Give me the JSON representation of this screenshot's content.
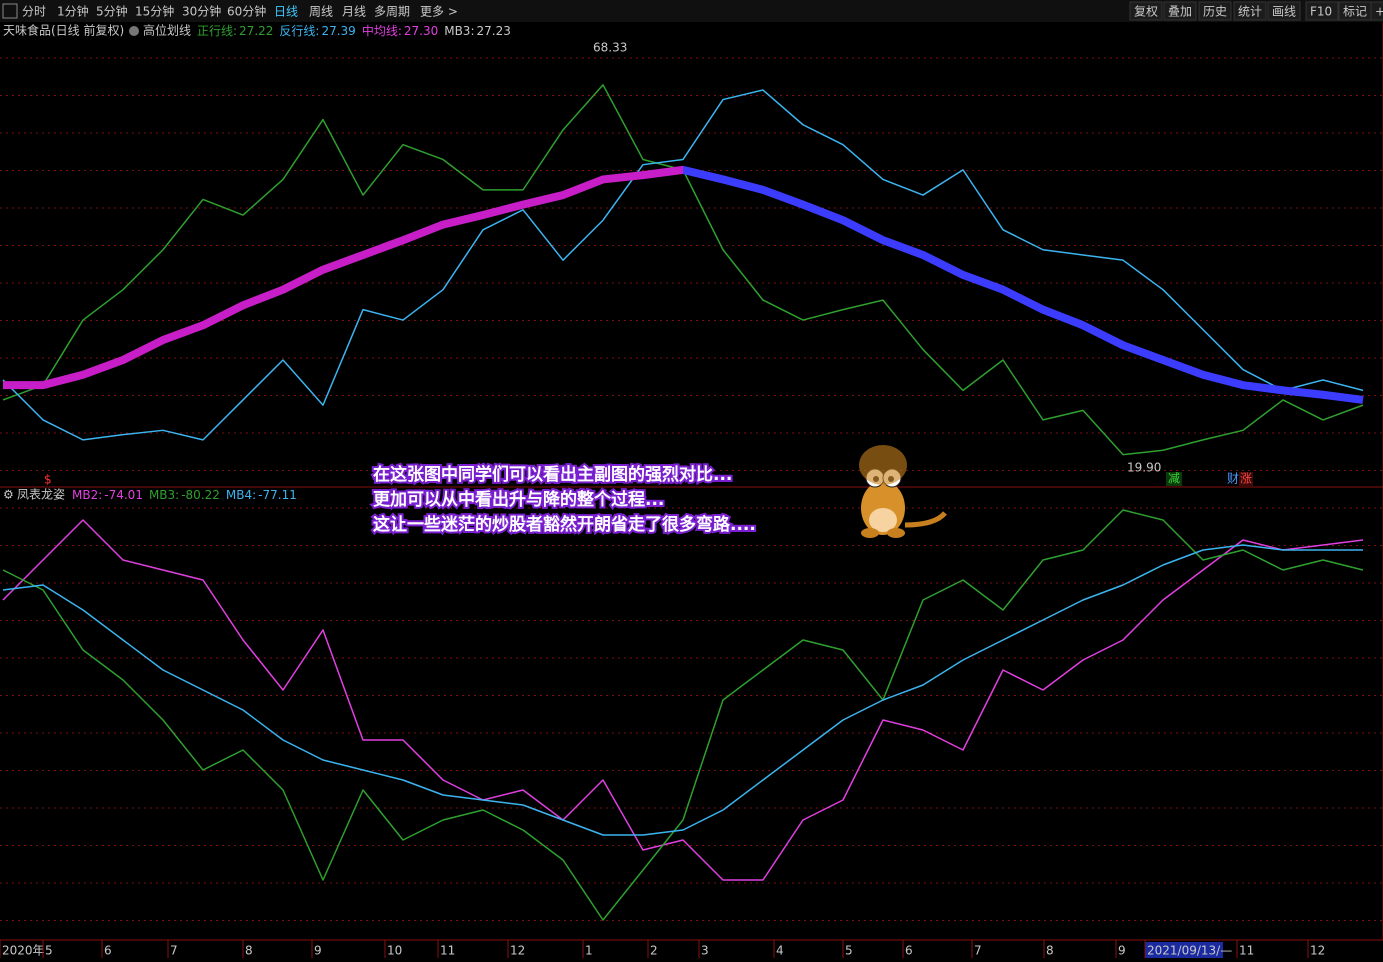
{
  "toolbar": {
    "periods": [
      "分时",
      "1分钟",
      "5分钟",
      "15分钟",
      "30分钟",
      "60分钟",
      "日线",
      "周线",
      "月线",
      "多周期",
      "更多 >"
    ],
    "active": "日线",
    "tools": [
      "复权",
      "叠加",
      "历史",
      "统计",
      "画线",
      "F10",
      "标记",
      "+"
    ]
  },
  "main_panel": {
    "title": "天味食品(日线 前复权)",
    "indicator": "高位划线",
    "legend": [
      {
        "label": "正行线:",
        "value": "27.22",
        "color": "#2fa02f"
      },
      {
        "label": "反行线:",
        "value": "27.39",
        "color": "#3cb4f0"
      },
      {
        "label": "中均线:",
        "value": "27.30",
        "color": "#e040e0"
      },
      {
        "label": "MB3:",
        "value": "27.23",
        "color": "#c8c8c8"
      }
    ],
    "ylim": [
      17.6,
      69.9
    ],
    "series": [
      {
        "name": "正行线",
        "color": "#2fa02f",
        "width": 1.5,
        "values": [
          27.4,
          29.1,
          36.6,
          40.1,
          44.7,
          50.5,
          48.7,
          52.8,
          59.7,
          51.0,
          56.8,
          55.1,
          51.6,
          51.6,
          58.5,
          63.7,
          55.1,
          53.9,
          44.7,
          38.9,
          36.6,
          37.8,
          38.9,
          33.2,
          28.5,
          32.0,
          25.1,
          26.2,
          21.1,
          21.6,
          22.8,
          23.9,
          27.4,
          25.1,
          26.8
        ]
      },
      {
        "name": "反行线",
        "color": "#3cb4f0",
        "width": 1.5,
        "values": [
          29.7,
          25.1,
          22.8,
          23.4,
          23.9,
          22.8,
          27.4,
          32.0,
          26.8,
          37.8,
          36.6,
          40.1,
          47.0,
          49.3,
          43.5,
          48.1,
          54.5,
          55.1,
          62.0,
          63.1,
          59.1,
          56.8,
          52.8,
          51.0,
          53.9,
          47.0,
          44.7,
          44.1,
          43.5,
          40.1,
          35.5,
          30.9,
          28.5,
          29.7,
          28.5
        ]
      },
      {
        "name": "中均线",
        "colors": [
          "#c81ec8",
          "#3c3cff"
        ],
        "width": 8,
        "values": [
          29.1,
          29.1,
          30.3,
          32.0,
          34.3,
          36.0,
          38.3,
          40.1,
          42.4,
          44.1,
          45.8,
          47.6,
          48.7,
          49.9,
          51.0,
          52.8,
          53.3,
          53.9,
          52.8,
          51.6,
          49.9,
          48.1,
          45.8,
          44.1,
          41.8,
          40.1,
          37.8,
          36.0,
          33.7,
          32.0,
          30.3,
          29.1,
          28.5,
          28.0,
          27.4
        ]
      }
    ],
    "high_label": "68.33",
    "low_label": "19.90",
    "signals": [
      "减",
      "财",
      "涨"
    ],
    "marker": "$"
  },
  "sub_panel": {
    "indicator": "凤表龙姿",
    "legend": [
      {
        "label": "MB2:",
        "value": "-74.01",
        "color": "#e040e0"
      },
      {
        "label": "MB3:",
        "value": "-80.22",
        "color": "#2fa02f"
      },
      {
        "label": "MB4:",
        "value": "-77.11",
        "color": "#3cb4f0"
      }
    ],
    "ylim": [
      -153,
      -66
    ],
    "series": [
      {
        "name": "MB2",
        "color": "#e040e0",
        "values": [
          -87,
          -79,
          -71,
          -79,
          -81,
          -83,
          -95,
          -105,
          -93,
          -115,
          -115,
          -123,
          -127,
          -125,
          -131,
          -123,
          -137,
          -135,
          -143,
          -143,
          -131,
          -127,
          -111,
          -113,
          -117,
          -101,
          -105,
          -99,
          -95,
          -87,
          -81,
          -75,
          -77,
          -76,
          -75
        ]
      },
      {
        "name": "MB3",
        "color": "#2fa02f",
        "values": [
          -81,
          -85,
          -97,
          -103,
          -111,
          -121,
          -117,
          -125,
          -143,
          -125,
          -135,
          -131,
          -129,
          -133,
          -139,
          -151,
          -141,
          -131,
          -107,
          -101,
          -95,
          -97,
          -107,
          -87,
          -83,
          -89,
          -79,
          -77,
          -69,
          -71,
          -79,
          -77,
          -81,
          -79,
          -81
        ]
      },
      {
        "name": "MB4",
        "color": "#3cb4f0",
        "values": [
          -85,
          -84,
          -89,
          -95,
          -101,
          -105,
          -109,
          -115,
          -119,
          -121,
          -123,
          -126,
          -127,
          -128,
          -131,
          -134,
          -134,
          -133,
          -129,
          -123,
          -117,
          -111,
          -107,
          -104,
          -99,
          -95,
          -91,
          -87,
          -84,
          -80,
          -77,
          -76,
          -77,
          -77,
          -77
        ]
      }
    ]
  },
  "x_axis": {
    "labels": [
      "2020年",
      "5",
      "6",
      "7",
      "8",
      "9",
      "10",
      "11",
      "12",
      "1",
      "2",
      "3",
      "4",
      "5",
      "6",
      "7",
      "8",
      "9",
      "2021/09/13/—",
      "11",
      "12"
    ]
  },
  "annotation": {
    "lines": [
      "在这张图中同学们可以看出主副图的强烈对比...",
      "更加可以从中看出升与降的整个过程...",
      "这让一些迷茫的炒股者豁然开朗省走了很多弯路...."
    ]
  }
}
